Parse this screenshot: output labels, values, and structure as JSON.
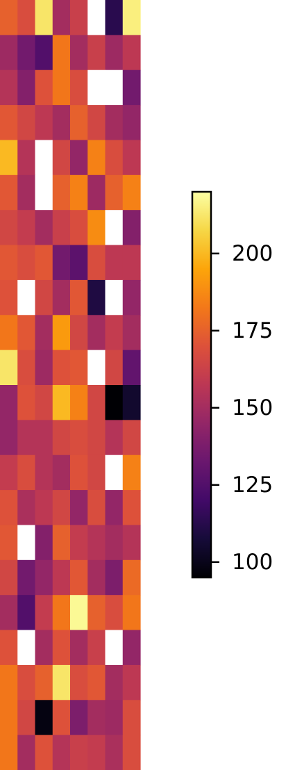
{
  "chart_data": {
    "type": "heatmap",
    "title": "",
    "xlabel": "",
    "ylabel": "",
    "colormap": "inferno",
    "vmin": 95,
    "vmax": 220,
    "nan_color": "#ffffff",
    "colorbar": {
      "ticks": [
        100,
        125,
        150,
        175,
        200
      ],
      "tick_labels": [
        "100",
        "125",
        "150",
        "175",
        "200"
      ]
    },
    "values": [
      [
        175,
        168,
        212,
        150,
        162,
        null,
        113,
        215
      ],
      [
        148,
        135,
        125,
        182,
        150,
        162,
        148,
        158
      ],
      [
        155,
        140,
        170,
        182,
        168,
        null,
        null,
        135
      ],
      [
        172,
        165,
        158,
        150,
        175,
        165,
        150,
        145
      ],
      [
        200,
        155,
        null,
        165,
        145,
        185,
        168,
        158
      ],
      [
        172,
        150,
        null,
        175,
        185,
        148,
        175,
        185
      ],
      [
        165,
        160,
        150,
        162,
        168,
        188,
        null,
        140
      ],
      [
        172,
        168,
        172,
        135,
        128,
        168,
        158,
        158
      ],
      [
        170,
        null,
        165,
        150,
        172,
        110,
        null,
        145
      ],
      [
        182,
        172,
        150,
        192,
        165,
        150,
        160,
        150
      ],
      [
        212,
        168,
        148,
        170,
        172,
        null,
        165,
        130
      ],
      [
        145,
        170,
        165,
        200,
        185,
        165,
        95,
        105
      ],
      [
        145,
        155,
        155,
        165,
        168,
        165,
        155,
        165
      ],
      [
        160,
        168,
        155,
        150,
        170,
        165,
        null,
        185
      ],
      [
        170,
        152,
        158,
        165,
        145,
        168,
        145,
        170
      ],
      [
        172,
        null,
        140,
        175,
        160,
        155,
        150,
        155
      ],
      [
        165,
        135,
        145,
        158,
        172,
        150,
        138,
        178
      ],
      [
        150,
        125,
        160,
        182,
        218,
        175,
        168,
        182
      ],
      [
        170,
        null,
        150,
        170,
        150,
        162,
        null,
        145
      ],
      [
        182,
        168,
        175,
        212,
        168,
        172,
        150,
        158
      ],
      [
        182,
        165,
        98,
        170,
        138,
        150,
        148,
        168
      ],
      [
        182,
        150,
        170,
        155,
        162,
        160,
        152,
        168
      ]
    ]
  }
}
